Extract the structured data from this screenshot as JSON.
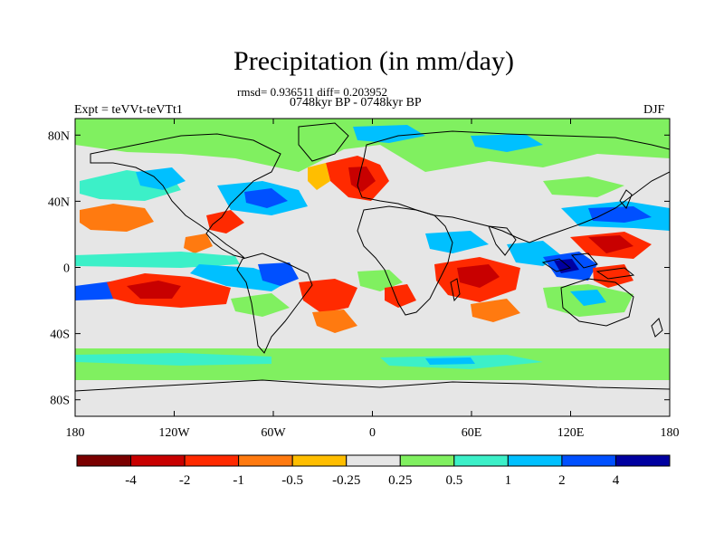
{
  "title": "Precipitation (in mm/day)",
  "stats": "rmsd= 0.936511 diff= 0.203952",
  "period": "0748kyr BP - 0748kyr BP",
  "experiment": "Expt = teVVt-teVTt1",
  "season": "DJF",
  "map": {
    "y_ticks": [
      {
        "label": "80N",
        "lat": 80
      },
      {
        "label": "40N",
        "lat": 40
      },
      {
        "label": "0",
        "lat": 0
      },
      {
        "label": "40S",
        "lat": -40
      },
      {
        "label": "80S",
        "lat": -80
      }
    ],
    "x_ticks": [
      {
        "label": "180",
        "lon": -180
      },
      {
        "label": "120W",
        "lon": -120
      },
      {
        "label": "60W",
        "lon": -60
      },
      {
        "label": "0",
        "lon": 0
      },
      {
        "label": "60E",
        "lon": 60
      },
      {
        "label": "120E",
        "lon": 120
      },
      {
        "label": "180",
        "lon": 180
      }
    ],
    "lon_range": [
      -180,
      180
    ],
    "lat_range": [
      -90,
      90
    ]
  },
  "colorbar": {
    "colors": [
      "#7a0000",
      "#c80000",
      "#ff2a00",
      "#ff7a10",
      "#ffbe00",
      "#e6e6e6",
      "#80f060",
      "#3cf0c8",
      "#00c0ff",
      "#0050ff",
      "#0000a0"
    ],
    "labels": [
      "-4",
      "-2",
      "-1",
      "-0.5",
      "-0.25",
      "0.25",
      "0.5",
      "1",
      "2",
      "4"
    ]
  },
  "palette": {
    "ocean_bg": "#e6e6e6",
    "coast": "#000000",
    "wet_strong": "#0000a0",
    "wet_med": "#0050ff",
    "wet": "#00c0ff",
    "wet_light": "#3cf0c8",
    "wet_faint": "#80f060",
    "dry_faint": "#ffbe00",
    "dry_light": "#ff7a10",
    "dry": "#ff2a00",
    "dry_strong": "#c80000",
    "dry_max": "#7a0000"
  }
}
